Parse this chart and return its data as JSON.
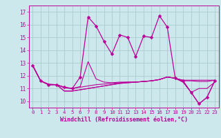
{
  "xlabel": "Windchill (Refroidissement éolien,°C)",
  "background_color": "#cce8ec",
  "grid_color": "#aacccc",
  "line_color": "#bb0099",
  "x": [
    0,
    1,
    2,
    3,
    4,
    5,
    6,
    7,
    8,
    9,
    10,
    11,
    12,
    13,
    14,
    15,
    16,
    17,
    18,
    19,
    20,
    21,
    22,
    23
  ],
  "series": [
    [
      12.8,
      11.6,
      11.3,
      11.3,
      11.1,
      11.0,
      11.9,
      16.6,
      15.9,
      14.7,
      13.7,
      15.2,
      15.0,
      13.5,
      15.1,
      15.0,
      16.7,
      15.8,
      11.8,
      11.6,
      10.7,
      9.8,
      10.3,
      11.6
    ],
    [
      12.8,
      11.6,
      11.35,
      11.3,
      11.1,
      11.0,
      11.15,
      13.1,
      11.75,
      11.5,
      11.45,
      11.5,
      11.5,
      11.5,
      11.55,
      11.6,
      11.7,
      11.9,
      11.8,
      11.65,
      11.65,
      11.65,
      11.65,
      11.65
    ],
    [
      12.8,
      11.6,
      11.3,
      11.3,
      11.05,
      11.0,
      11.1,
      11.2,
      11.3,
      11.35,
      11.4,
      11.45,
      11.5,
      11.5,
      11.55,
      11.6,
      11.7,
      11.9,
      11.8,
      11.6,
      11.6,
      11.55,
      11.55,
      11.65
    ],
    [
      12.8,
      11.6,
      11.3,
      11.3,
      10.8,
      10.8,
      10.9,
      11.0,
      11.1,
      11.2,
      11.3,
      11.4,
      11.45,
      11.5,
      11.55,
      11.6,
      11.7,
      11.9,
      11.8,
      11.5,
      10.7,
      11.0,
      11.0,
      11.5
    ],
    [
      12.8,
      11.6,
      11.3,
      11.3,
      10.8,
      10.8,
      10.9,
      11.0,
      11.1,
      11.2,
      11.3,
      11.4,
      11.45,
      11.5,
      11.55,
      11.6,
      11.7,
      11.9,
      11.8,
      11.5,
      10.7,
      9.8,
      10.3,
      11.6
    ]
  ],
  "ylim": [
    9.5,
    17.5
  ],
  "yticks": [
    10,
    11,
    12,
    13,
    14,
    15,
    16,
    17
  ],
  "xticks": [
    0,
    1,
    2,
    3,
    4,
    5,
    6,
    7,
    8,
    9,
    10,
    11,
    12,
    13,
    14,
    15,
    16,
    17,
    18,
    19,
    20,
    21,
    22,
    23
  ]
}
